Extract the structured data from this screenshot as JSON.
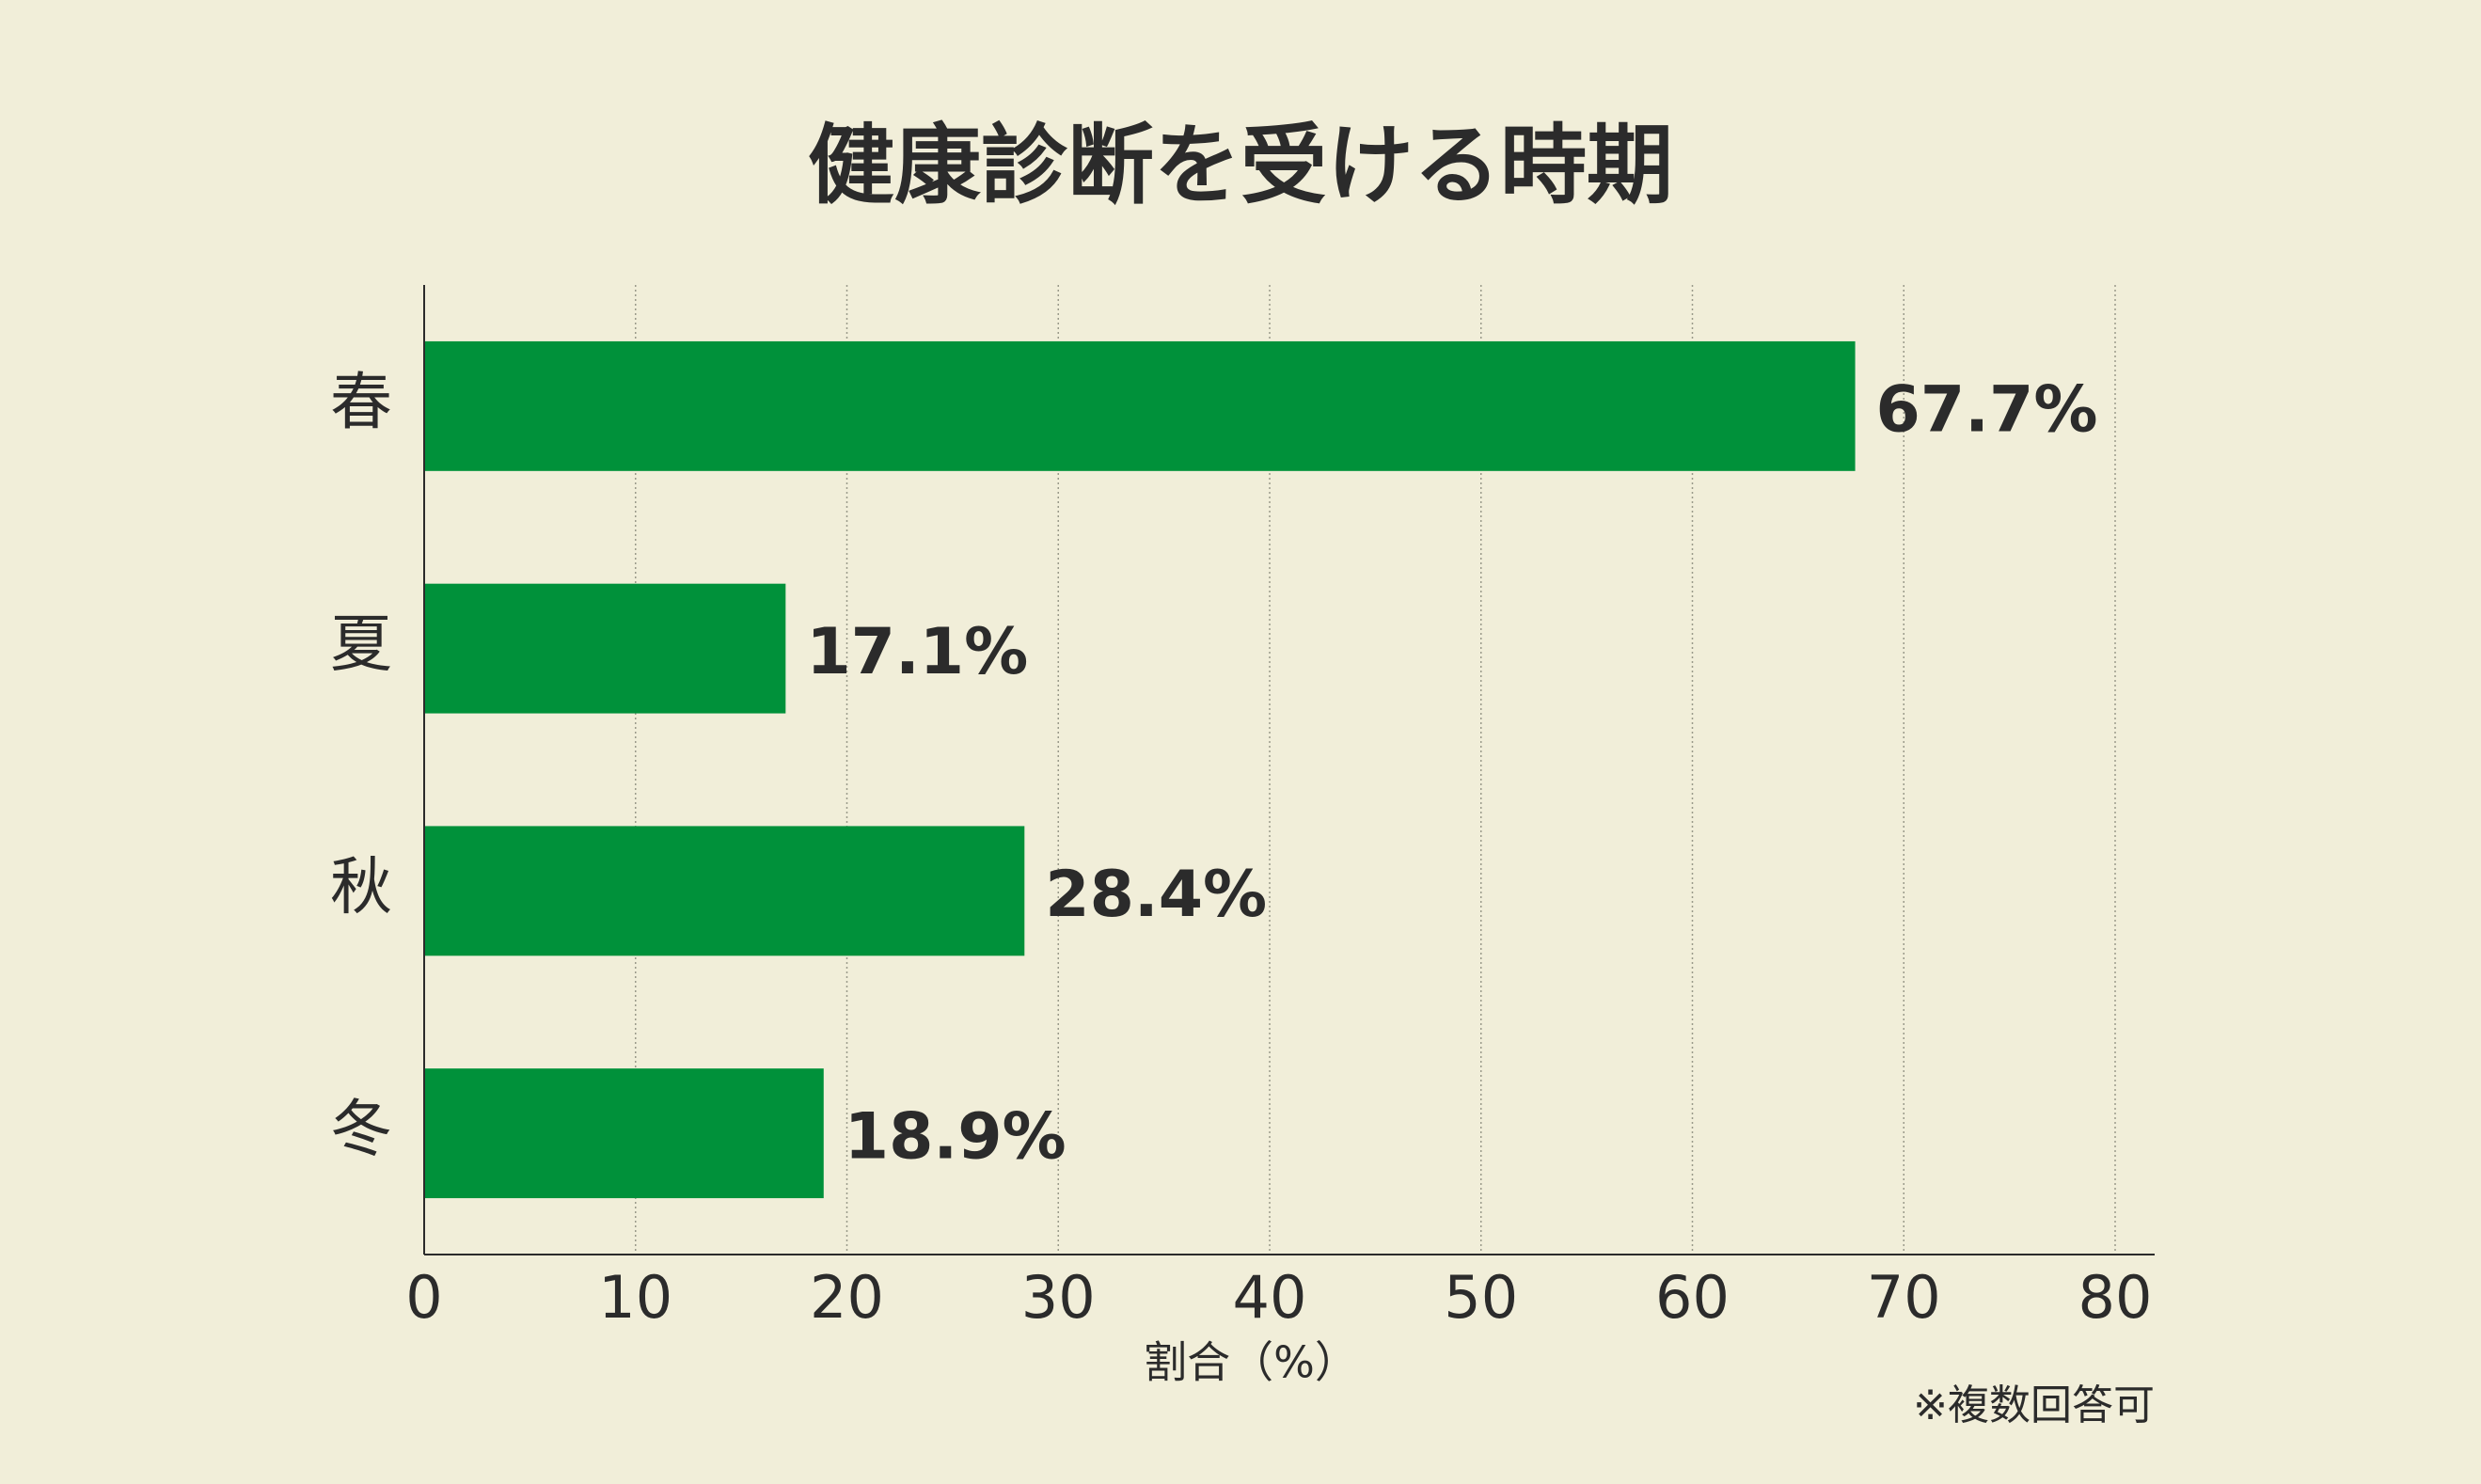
{
  "chart_data": {
    "type": "bar",
    "orientation": "horizontal",
    "title": "健康診断を受ける時期",
    "categories": [
      "春",
      "夏",
      "秋",
      "冬"
    ],
    "values": [
      67.7,
      17.1,
      28.4,
      18.9
    ],
    "value_labels": [
      "67.7%",
      "17.1%",
      "28.4%",
      "18.9%"
    ],
    "color": "#00913a",
    "xlim": [
      0,
      80
    ],
    "xticks": [
      0,
      10,
      20,
      30,
      40,
      50,
      60,
      70,
      80
    ],
    "x_label": "割合（%）",
    "note": "※複数回答可",
    "grid": true
  }
}
